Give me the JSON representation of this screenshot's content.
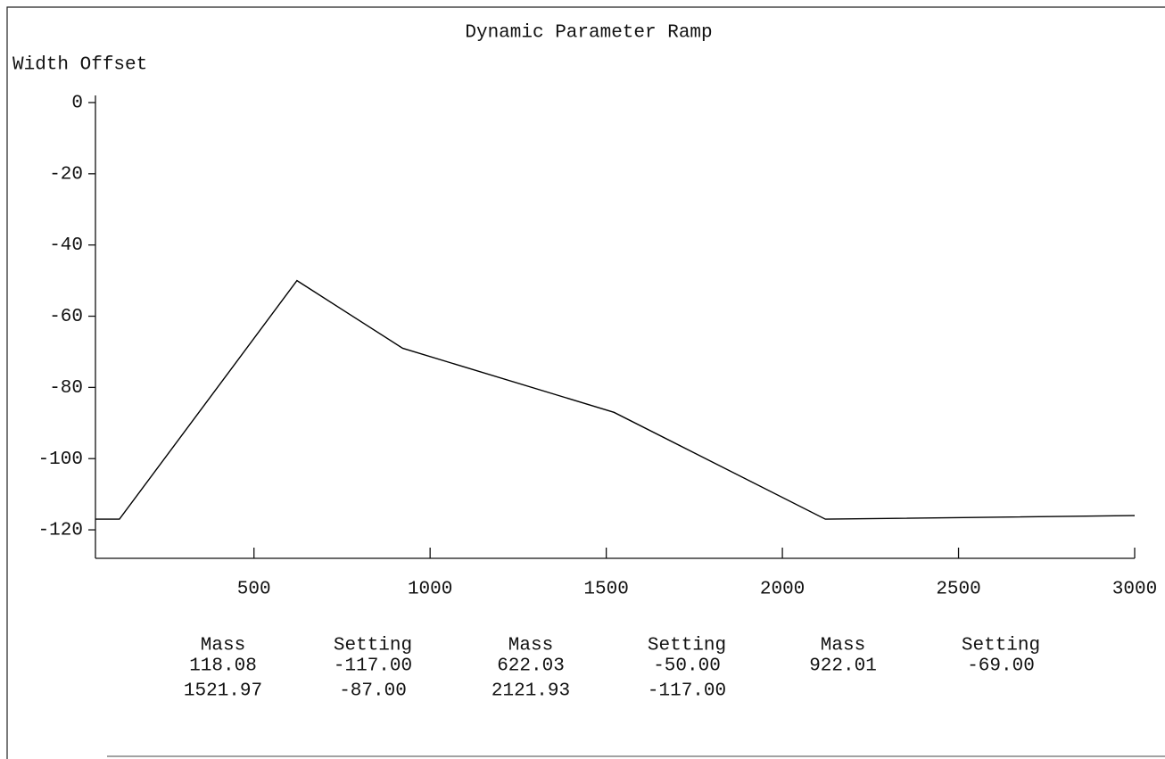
{
  "chart_data": {
    "type": "line",
    "title": "Dynamic Parameter Ramp",
    "y_label": "Width Offset",
    "x": [
      50,
      118.08,
      622.03,
      922.01,
      1521.97,
      2121.93,
      3000
    ],
    "values": [
      -117,
      -117,
      -50,
      -69,
      -87,
      -117,
      -116
    ],
    "color": "#000000",
    "xlim": [
      50,
      3000
    ],
    "xticks": [
      500,
      1000,
      1500,
      2000,
      2500,
      3000
    ],
    "ylim": [
      -128,
      2
    ],
    "yticks": [
      0,
      -20,
      -40,
      -60,
      -80,
      -100,
      -120
    ],
    "grid": false
  },
  "table": {
    "columns": [
      "Mass",
      "Setting",
      "Mass",
      "Setting",
      "Mass",
      "Setting"
    ],
    "rows": [
      [
        "118.08",
        "-117.00",
        "622.03",
        "-50.00",
        "922.01",
        "-69.00"
      ],
      [
        "1521.97",
        "-87.00",
        "2121.93",
        "-117.00"
      ]
    ]
  }
}
